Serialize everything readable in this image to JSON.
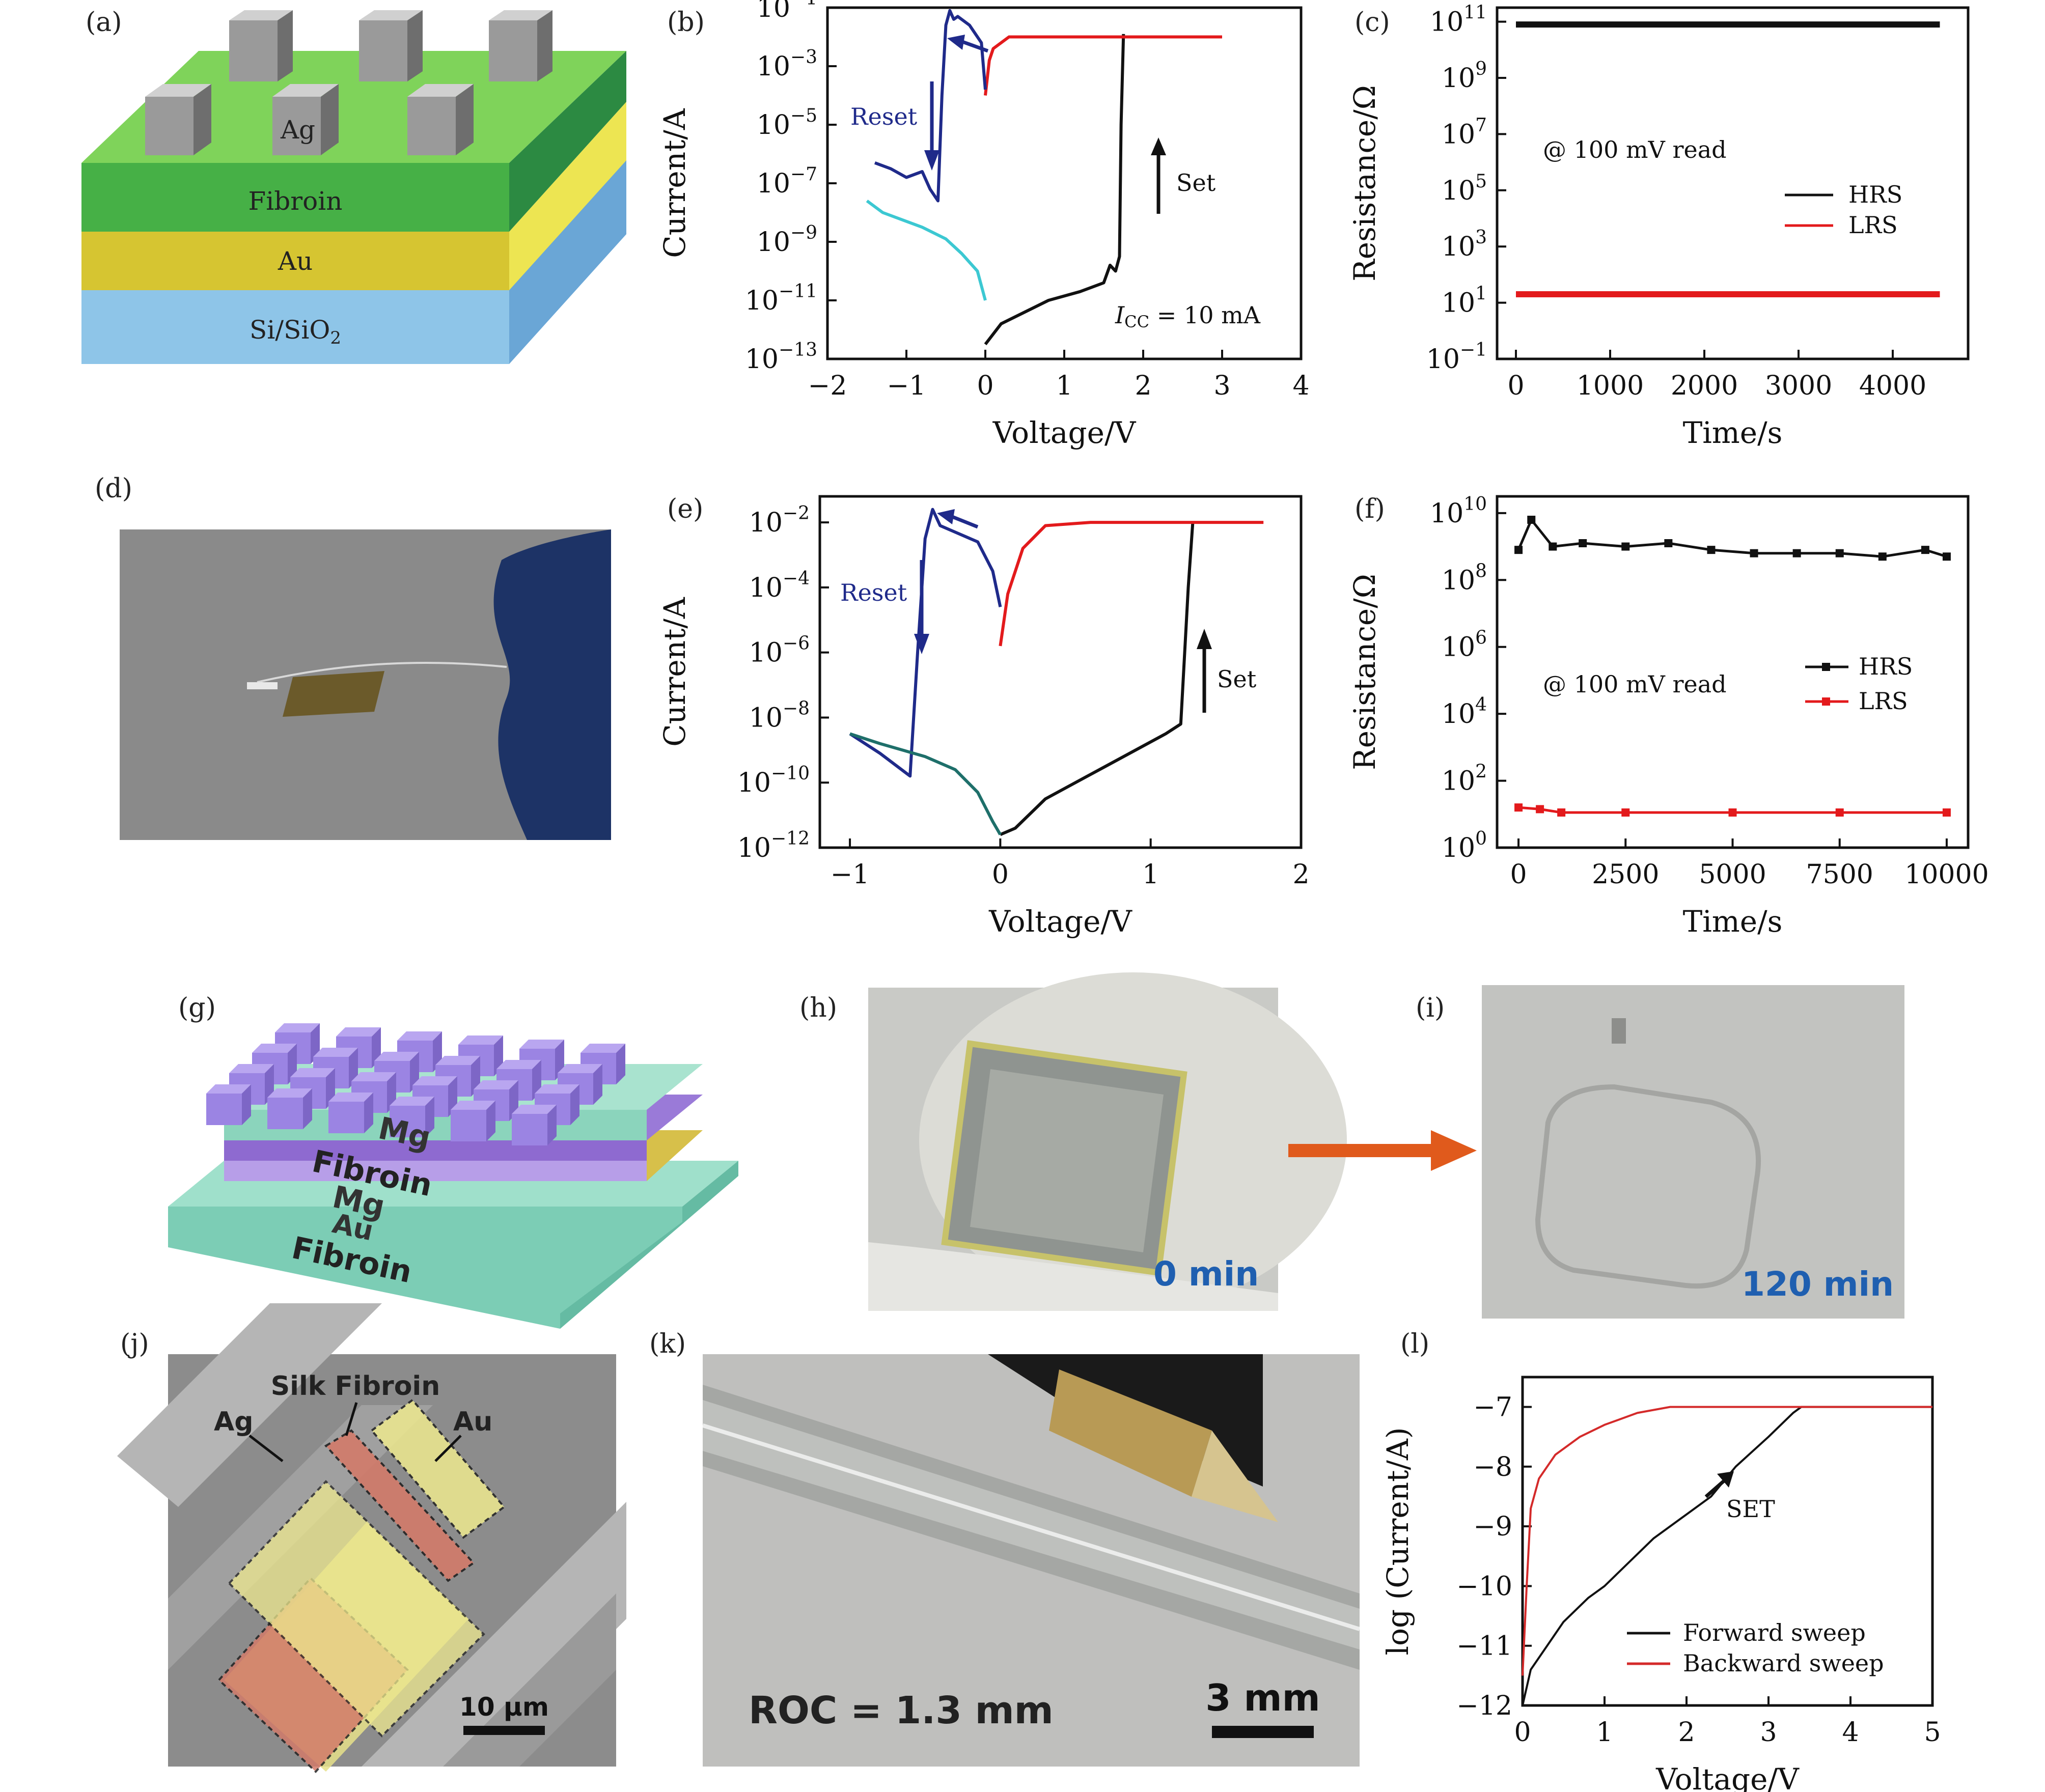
{
  "panel_labels": {
    "a": "(a)",
    "b": "(b)",
    "c": "(c)",
    "d": "(d)",
    "e": "(e)",
    "f": "(f)",
    "g": "(g)",
    "h": "(h)",
    "i": "(i)",
    "j": "(j)",
    "k": "(k)",
    "l": "(l)"
  },
  "panel_a": {
    "layers": [
      "Ag",
      "Fibroin",
      "Au",
      "Si/SiO"
    ],
    "sub": "2"
  },
  "panel_g": {
    "layers": [
      "Mg",
      "Fibroin",
      "Mg",
      "Au",
      "Fibroin"
    ]
  },
  "panel_h": {
    "caption": "0 min"
  },
  "panel_i": {
    "caption": "120 min"
  },
  "panel_j": {
    "labels": [
      "Silk Fibroin",
      "Ag",
      "Au"
    ],
    "scale": "10 μm"
  },
  "panel_k": {
    "caption": "ROC = 1.3 mm",
    "scale": "3 mm"
  },
  "chart_data": [
    {
      "id": "b",
      "type": "line",
      "xlabel": "Voltage/V",
      "ylabel": "Current/A",
      "xlim": [
        -2,
        4
      ],
      "ylim_log10": [
        -13,
        -1
      ],
      "xticks": [
        "−2",
        "−1",
        "0",
        "1",
        "2",
        "3",
        "4"
      ],
      "yticks_exp": [
        "−1",
        "−3",
        "−5",
        "−7",
        "−9",
        "−11",
        "−13"
      ],
      "annotations": [
        "Reset",
        "Set",
        "I",
        "CC",
        " = 10 mA"
      ],
      "series": [
        {
          "color": "#111111",
          "x": [
            0,
            0.2,
            0.5,
            0.8,
            1.2,
            1.5,
            1.58,
            1.65,
            1.7,
            1.72,
            1.75
          ],
          "log10y": [
            -12.5,
            -11.8,
            -11.4,
            -11.0,
            -10.7,
            -10.4,
            -9.8,
            -10.0,
            -9.5,
            -5.0,
            -1.9
          ]
        },
        {
          "color": "#e31a1c",
          "x": [
            0,
            0.05,
            0.1,
            0.3,
            0.8,
            1.5,
            2.2,
            3.0
          ],
          "log10y": [
            -4.0,
            -2.8,
            -2.4,
            -2.0,
            -2.0,
            -2.0,
            -2.0,
            -2.0
          ]
        },
        {
          "color": "#1f2a8a",
          "x": [
            0,
            -0.05,
            -0.2,
            -0.35,
            -0.4,
            -0.45,
            -0.5,
            -0.55,
            -0.6,
            -0.7,
            -0.8,
            -1.0,
            -1.2,
            -1.4
          ],
          "log10y": [
            -3.8,
            -2.2,
            -1.6,
            -1.3,
            -1.4,
            -1.1,
            -1.6,
            -4.0,
            -7.6,
            -7.2,
            -6.6,
            -6.8,
            -6.5,
            -6.3
          ]
        },
        {
          "color": "#3cc8d2",
          "x": [
            -1.5,
            -1.3,
            -1.0,
            -0.8,
            -0.5,
            -0.3,
            -0.1,
            0
          ],
          "log10y": [
            -7.6,
            -8.0,
            -8.3,
            -8.5,
            -8.9,
            -9.4,
            -10.0,
            -11.0
          ]
        }
      ]
    },
    {
      "id": "c",
      "type": "line",
      "xlabel": "Time/s",
      "ylabel": "Resistance/Ω",
      "xlim": [
        -200,
        4800
      ],
      "ylim_log10": [
        -1,
        11.5
      ],
      "xticks": [
        "0",
        "1000",
        "2000",
        "3000",
        "4000"
      ],
      "yticks_exp": [
        "11",
        "9",
        "7",
        "5",
        "3",
        "1",
        "−1"
      ],
      "annotation": "@ 100 mV read",
      "legend": [
        "HRS",
        "LRS"
      ],
      "series": [
        {
          "name": "HRS",
          "color": "#111111",
          "x": [
            0,
            4500
          ],
          "log10y": [
            10.9,
            10.9
          ]
        },
        {
          "name": "LRS",
          "color": "#e31a1c",
          "x": [
            0,
            4500
          ],
          "log10y": [
            1.3,
            1.3
          ]
        }
      ]
    },
    {
      "id": "e",
      "type": "line",
      "xlabel": "Voltage/V",
      "ylabel": "Current/A",
      "xlim": [
        -1.2,
        2
      ],
      "ylim_log10": [
        -12,
        -1.2
      ],
      "xticks": [
        "−1",
        "0",
        "1",
        "2"
      ],
      "yticks_exp": [
        "−2",
        "−4",
        "−6",
        "−8",
        "−10",
        "−12"
      ],
      "annotations": [
        "Reset",
        "Set"
      ],
      "series": [
        {
          "color": "#111111",
          "x": [
            0,
            0.1,
            0.3,
            0.5,
            0.7,
            0.9,
            1.1,
            1.2,
            1.25,
            1.28
          ],
          "log10y": [
            -11.6,
            -11.4,
            -10.5,
            -10.0,
            -9.5,
            -9.0,
            -8.5,
            -8.2,
            -4.0,
            -2.0
          ]
        },
        {
          "color": "#e31a1c",
          "x": [
            0,
            0.05,
            0.15,
            0.3,
            0.6,
            1.0,
            1.4,
            1.75
          ],
          "log10y": [
            -5.8,
            -4.2,
            -2.8,
            -2.1,
            -2.0,
            -2.0,
            -2.0,
            -2.0
          ]
        },
        {
          "color": "#1f2a8a",
          "x": [
            0,
            -0.05,
            -0.15,
            -0.3,
            -0.4,
            -0.45,
            -0.5,
            -0.55,
            -0.6,
            -0.8,
            -1.0
          ],
          "log10y": [
            -4.6,
            -3.5,
            -2.6,
            -2.3,
            -2.1,
            -1.6,
            -2.5,
            -6.0,
            -9.8,
            -9.1,
            -8.5
          ]
        },
        {
          "color": "#1e6f6a",
          "x": [
            -1.0,
            -0.8,
            -0.5,
            -0.3,
            -0.15,
            -0.05,
            0
          ],
          "log10y": [
            -8.5,
            -8.8,
            -9.2,
            -9.6,
            -10.3,
            -11.2,
            -11.6
          ]
        }
      ]
    },
    {
      "id": "f",
      "type": "line",
      "xlabel": "Time/s",
      "ylabel": "Resistance/Ω",
      "xlim": [
        -500,
        10500
      ],
      "ylim_log10": [
        0,
        10.5
      ],
      "xticks": [
        "0",
        "2500",
        "5000",
        "7500",
        "10000"
      ],
      "yticks_exp": [
        "10",
        "8",
        "6",
        "4",
        "2",
        "0"
      ],
      "annotation": "@ 100 mV read",
      "legend": [
        "HRS",
        "LRS"
      ],
      "series": [
        {
          "name": "HRS",
          "color": "#111111",
          "x": [
            0,
            300,
            800,
            1500,
            2500,
            3500,
            4500,
            5500,
            6500,
            7500,
            8500,
            9500,
            10000
          ],
          "log10y": [
            8.9,
            9.8,
            9.0,
            9.1,
            9.0,
            9.1,
            8.9,
            8.8,
            8.8,
            8.8,
            8.7,
            8.9,
            8.7
          ]
        },
        {
          "name": "LRS",
          "color": "#e31a1c",
          "x": [
            0,
            500,
            1000,
            2500,
            5000,
            7500,
            10000
          ],
          "log10y": [
            1.2,
            1.15,
            1.05,
            1.05,
            1.05,
            1.05,
            1.05
          ]
        }
      ]
    },
    {
      "id": "l",
      "type": "line",
      "xlabel": "Voltage/V",
      "ylabel": "log (Current/A)",
      "xlim": [
        0,
        5
      ],
      "ylim": [
        -12,
        -6.5
      ],
      "xticks": [
        "0",
        "1",
        "2",
        "3",
        "4",
        "5"
      ],
      "yticks": [
        "−7",
        "−8",
        "−9",
        "−10",
        "−11",
        "−12"
      ],
      "annotation": "SET",
      "legend": [
        "Forward sweep",
        "Backward sweep"
      ],
      "series": [
        {
          "name": "Forward sweep",
          "color": "#111111",
          "x": [
            0,
            0.1,
            0.3,
            0.5,
            0.8,
            1.0,
            1.3,
            1.6,
            2.0,
            2.3,
            2.6,
            3.0,
            3.3,
            3.4,
            4.0,
            5.0
          ],
          "log10y": [
            -12.0,
            -11.4,
            -11.0,
            -10.6,
            -10.2,
            -10.0,
            -9.6,
            -9.2,
            -8.8,
            -8.5,
            -8.0,
            -7.5,
            -7.1,
            -7.0,
            -7.0,
            -7.0
          ]
        },
        {
          "name": "Backward sweep",
          "color": "#d42a2a",
          "x": [
            0,
            0.05,
            0.1,
            0.2,
            0.4,
            0.7,
            1.0,
            1.4,
            1.8,
            2.5,
            3.5,
            5.0
          ],
          "log10y": [
            -11.5,
            -10.0,
            -8.7,
            -8.2,
            -7.8,
            -7.5,
            -7.3,
            -7.1,
            -7.0,
            -7.0,
            -7.0,
            -7.0
          ]
        }
      ]
    }
  ]
}
